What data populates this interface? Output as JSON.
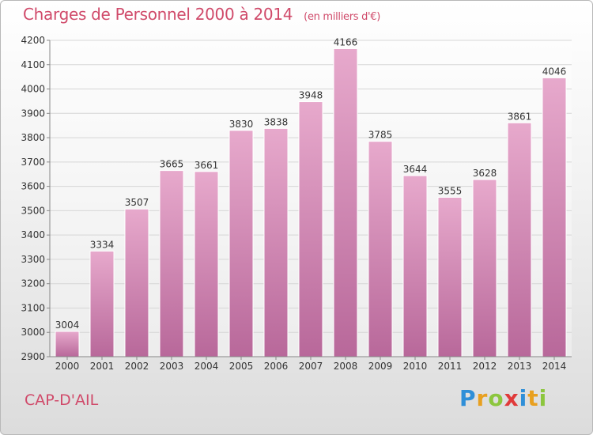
{
  "title": "Charges de Personnel 2000 à 2014",
  "unit_note": "(en milliers d'€)",
  "location": "CAP-D'AIL",
  "brand": {
    "letters": [
      "P",
      "r",
      "o",
      "x",
      "i",
      "t",
      "i"
    ],
    "colors": [
      "#2f8fd8",
      "#e8a020",
      "#8cc63e",
      "#e03a3a",
      "#2f8fd8",
      "#e8a020",
      "#8cc63e"
    ]
  },
  "colors": {
    "bar_top": "#e7a9cc",
    "bar_bottom": "#b8689a",
    "title": "#d04a6a",
    "grid": "#d6d6d6",
    "axis_text": "#333333"
  },
  "chart_data": {
    "type": "bar",
    "categories": [
      "2000",
      "2001",
      "2002",
      "2003",
      "2004",
      "2005",
      "2006",
      "2007",
      "2008",
      "2009",
      "2010",
      "2011",
      "2012",
      "2013",
      "2014"
    ],
    "values": [
      3004,
      3334,
      3507,
      3665,
      3661,
      3830,
      3838,
      3948,
      4166,
      3785,
      3644,
      3555,
      3628,
      3861,
      4046
    ],
    "title": "Charges de Personnel 2000 à 2014",
    "xlabel": "",
    "ylabel": "",
    "ylim": [
      2900,
      4200
    ],
    "yticks": [
      2900,
      3000,
      3100,
      3200,
      3300,
      3400,
      3500,
      3600,
      3700,
      3800,
      3900,
      4000,
      4100,
      4200
    ],
    "grid": true,
    "legend": "none"
  }
}
